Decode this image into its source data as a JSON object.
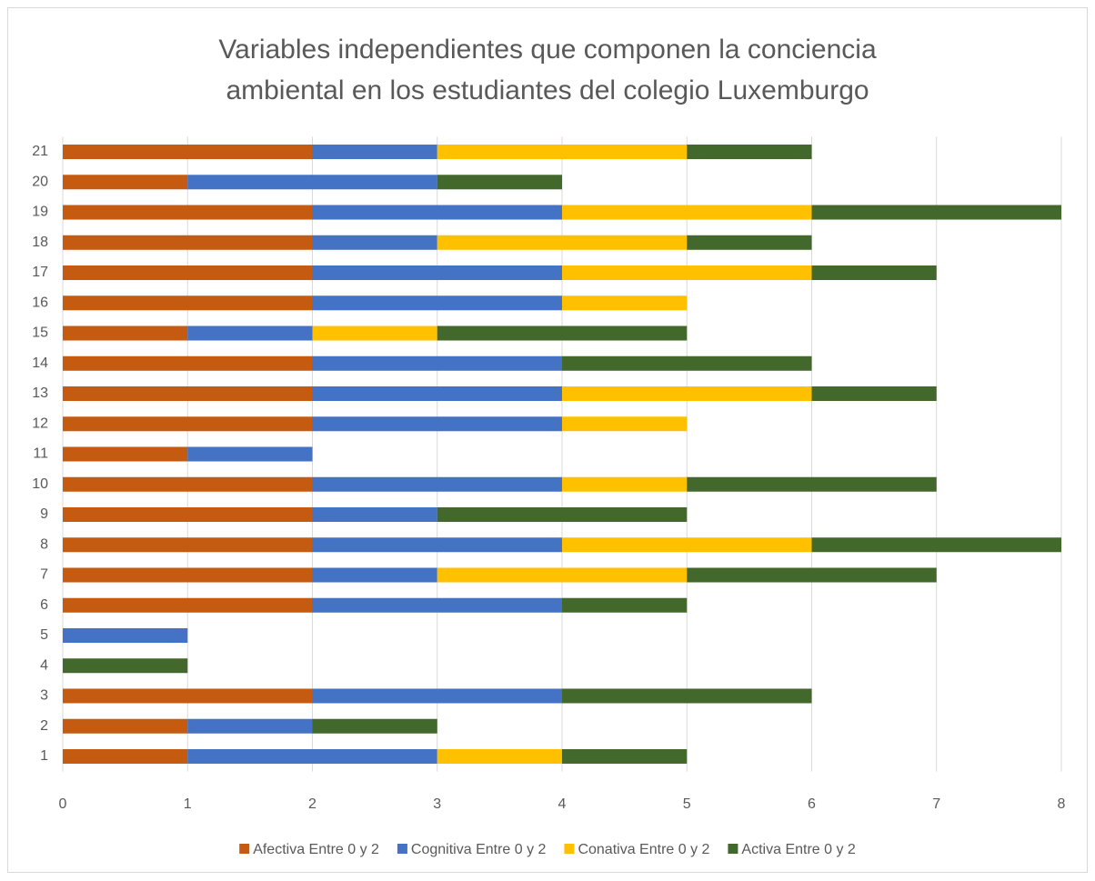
{
  "chart_data": {
    "type": "stacked-horizontal-bar",
    "title": [
      "Variables independientes que componen la conciencia",
      "ambiental en los estudiantes del colegio Luxemburgo"
    ],
    "categories": [
      "1",
      "2",
      "3",
      "4",
      "5",
      "6",
      "7",
      "8",
      "9",
      "10",
      "11",
      "12",
      "13",
      "14",
      "15",
      "16",
      "17",
      "18",
      "19",
      "20",
      "21"
    ],
    "series": [
      {
        "name": "Afectiva Entre 0 y 2",
        "color": "#c55a11",
        "values": [
          1,
          1,
          2,
          0,
          0,
          2,
          2,
          2,
          2,
          2,
          1,
          2,
          2,
          2,
          1,
          2,
          2,
          2,
          2,
          1,
          2
        ]
      },
      {
        "name": "Cognitiva Entre 0 y 2",
        "color": "#4472c4",
        "values": [
          2,
          1,
          2,
          0,
          1,
          2,
          1,
          2,
          1,
          2,
          1,
          2,
          2,
          2,
          1,
          2,
          2,
          1,
          2,
          2,
          1
        ]
      },
      {
        "name": "Conativa Entre 0 y 2",
        "color": "#ffc000",
        "values": [
          1,
          0,
          0,
          0,
          0,
          0,
          2,
          2,
          0,
          1,
          0,
          1,
          2,
          0,
          1,
          1,
          2,
          2,
          2,
          0,
          2
        ]
      },
      {
        "name": "Activa Entre 0 y 2",
        "color": "#43682b",
        "values": [
          1,
          1,
          2,
          1,
          0,
          1,
          2,
          2,
          2,
          2,
          0,
          0,
          1,
          2,
          2,
          0,
          1,
          1,
          2,
          1,
          1
        ]
      }
    ],
    "xlim": [
      0,
      8
    ],
    "xticks": [
      0,
      1,
      2,
      3,
      4,
      5,
      6,
      7,
      8
    ],
    "grid": true,
    "legend": "bottom"
  }
}
